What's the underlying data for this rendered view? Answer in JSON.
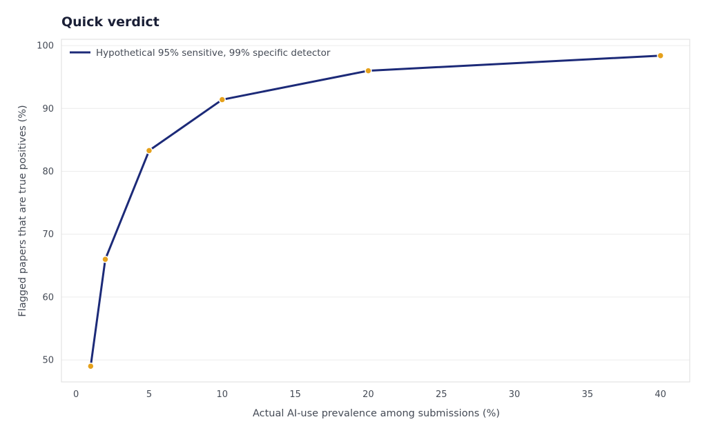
{
  "chart_data": {
    "type": "line",
    "title": "Quick verdict",
    "xlabel": "Actual AI-use prevalence among submissions (%)",
    "ylabel": "Flagged papers that are true positives (%)",
    "xlim": [
      -1,
      42
    ],
    "ylim": [
      46.5,
      101
    ],
    "x_ticks": [
      0,
      5,
      10,
      15,
      20,
      25,
      30,
      35,
      40
    ],
    "y_ticks": [
      50,
      60,
      70,
      80,
      90,
      100
    ],
    "grid": "horizontal",
    "legend_position": "top-left",
    "series": [
      {
        "name": "Hypothetical 95% sensitive, 99% specific detector",
        "x": [
          1,
          2,
          5,
          10,
          20,
          40
        ],
        "y": [
          49.0,
          66.0,
          83.3,
          91.4,
          96.0,
          98.4
        ],
        "line_color": "#1c2a78",
        "marker_color": "#e5a11c"
      }
    ]
  }
}
